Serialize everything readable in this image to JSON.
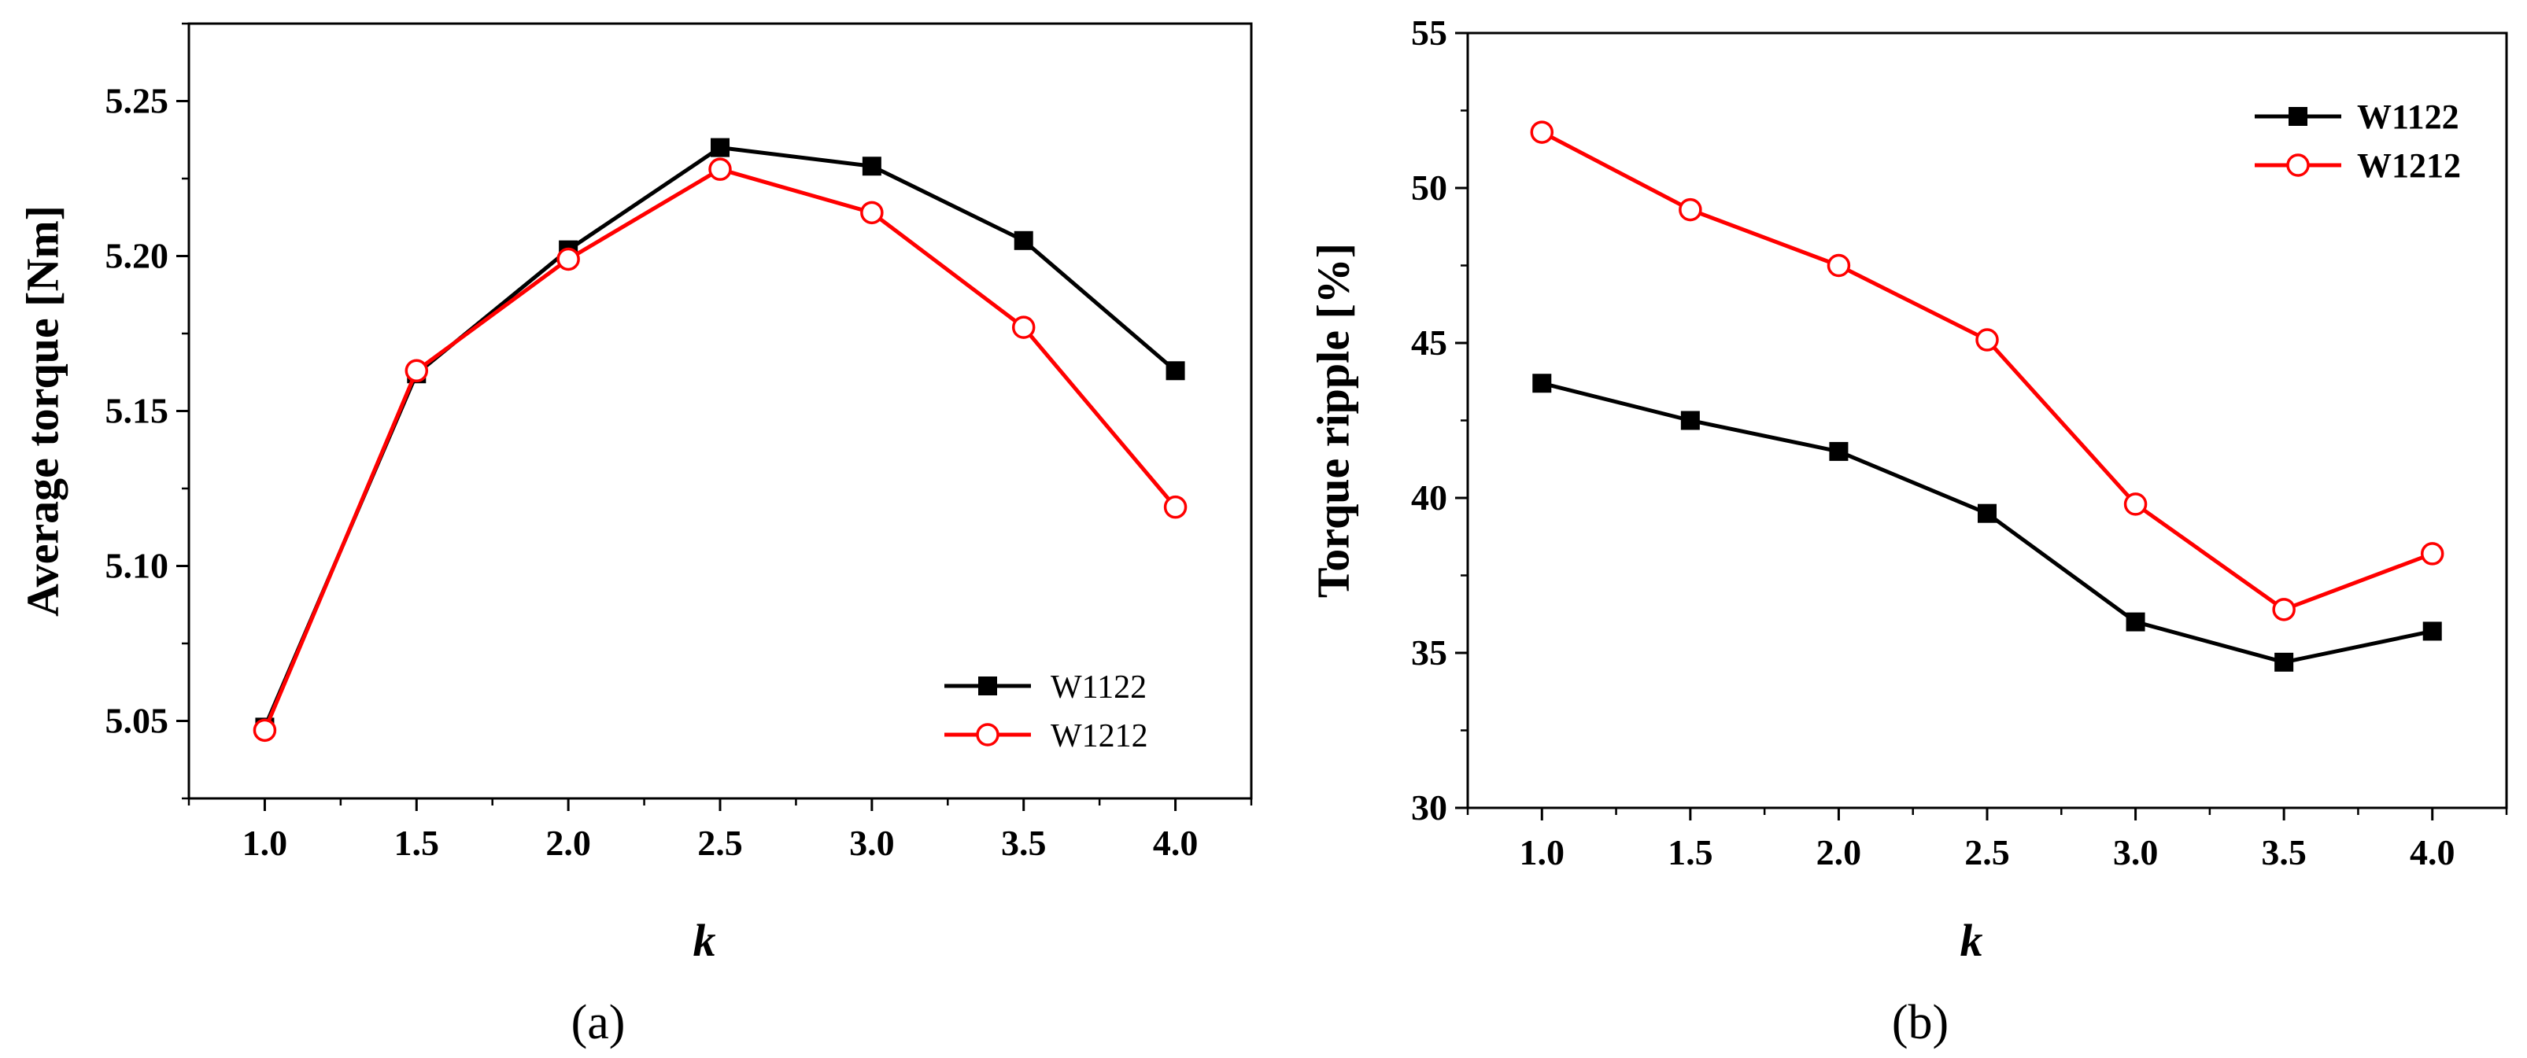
{
  "chart_data": [
    {
      "type": "line",
      "panel_label": "(a)",
      "x": [
        1.0,
        1.5,
        2.0,
        2.5,
        3.0,
        3.5,
        4.0
      ],
      "x_tick_labels": [
        "1.0",
        "1.5",
        "2.0",
        "2.5",
        "3.0",
        "3.5",
        "4.0"
      ],
      "xlim": [
        0.75,
        4.25
      ],
      "ylim": [
        5.025,
        5.275
      ],
      "y_ticks": [
        5.05,
        5.1,
        5.15,
        5.2,
        5.25
      ],
      "y_tick_labels": [
        "5.05",
        "5.10",
        "5.15",
        "5.20",
        "5.25"
      ],
      "xlabel": "k",
      "ylabel": "Average torque [Nm]",
      "legend_position": "bottom-right",
      "grid": false,
      "series": [
        {
          "name": "W1122",
          "color": "#000000",
          "marker": "filled-square",
          "values": [
            5.048,
            5.162,
            5.202,
            5.235,
            5.229,
            5.205,
            5.163
          ]
        },
        {
          "name": "W1212",
          "color": "#ff0000",
          "marker": "open-circle",
          "values": [
            5.047,
            5.163,
            5.199,
            5.228,
            5.214,
            5.177,
            5.119
          ]
        }
      ]
    },
    {
      "type": "line",
      "panel_label": "(b)",
      "x": [
        1.0,
        1.5,
        2.0,
        2.5,
        3.0,
        3.5,
        4.0
      ],
      "x_tick_labels": [
        "1.0",
        "1.5",
        "2.0",
        "2.5",
        "3.0",
        "3.5",
        "4.0"
      ],
      "xlim": [
        0.75,
        4.25
      ],
      "ylim": [
        30,
        55
      ],
      "y_ticks": [
        30,
        35,
        40,
        45,
        50,
        55
      ],
      "y_tick_labels": [
        "30",
        "35",
        "40",
        "45",
        "50",
        "55"
      ],
      "xlabel": "k",
      "ylabel": "Torque ripple [%]",
      "legend_position": "top-right",
      "grid": false,
      "series": [
        {
          "name": "W1122",
          "color": "#000000",
          "marker": "filled-square",
          "values": [
            43.7,
            42.5,
            41.5,
            39.5,
            36.0,
            34.7,
            35.7
          ]
        },
        {
          "name": "W1212",
          "color": "#ff0000",
          "marker": "open-circle",
          "values": [
            51.8,
            49.3,
            47.5,
            45.1,
            39.8,
            36.4,
            38.2
          ]
        }
      ]
    }
  ]
}
